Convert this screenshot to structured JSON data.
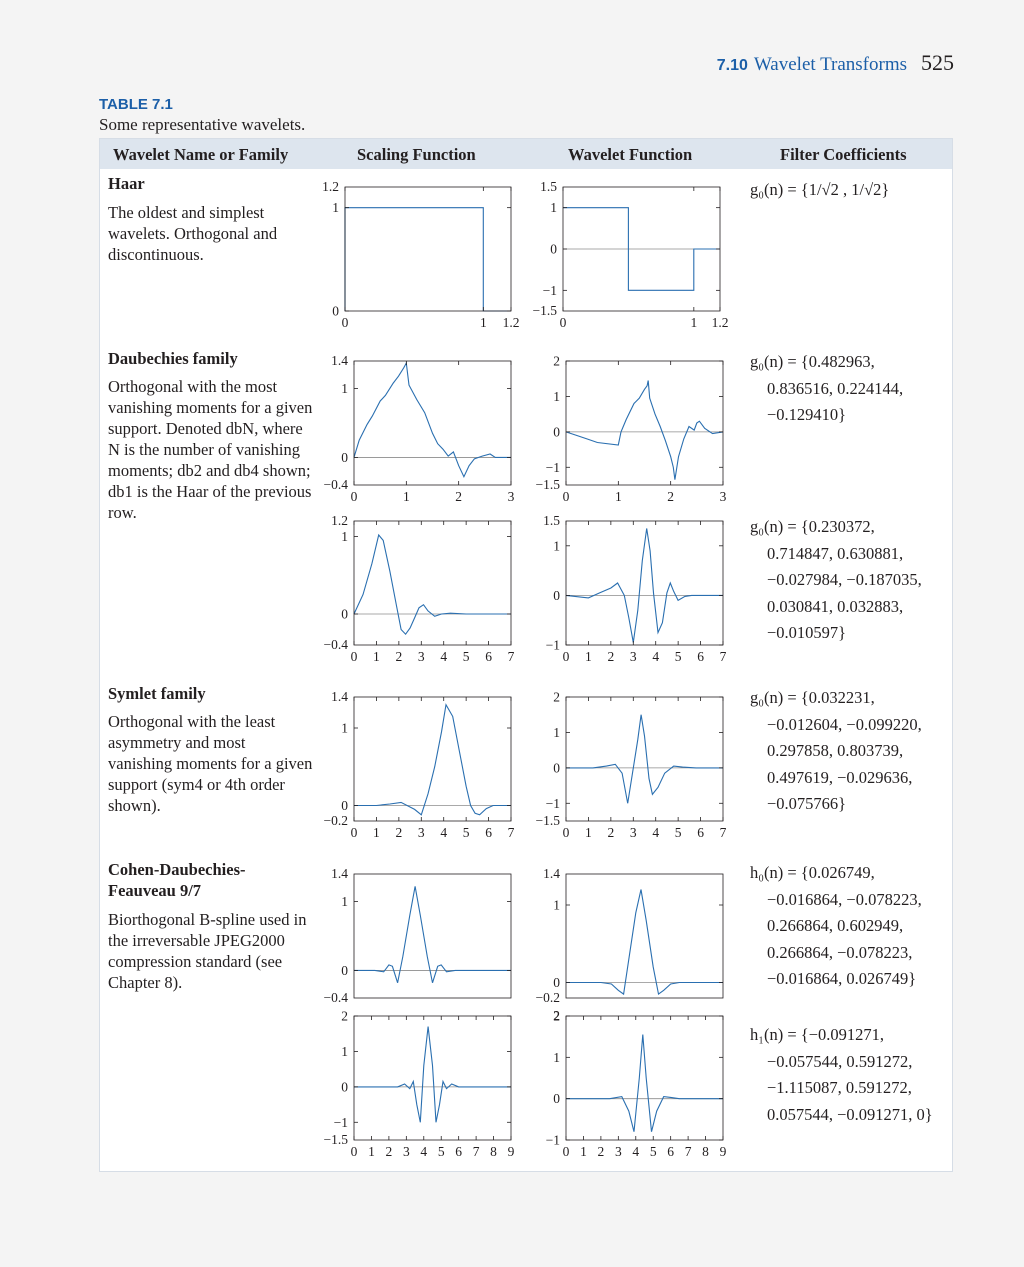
{
  "running_head": {
    "section_number": "7.10",
    "section_title": "Wavelet Transforms",
    "page_number": "525"
  },
  "table": {
    "label": "TABLE 7.1",
    "caption": "Some representative wavelets.",
    "headers": [
      "Wavelet Name or Family",
      "Scaling Function",
      "Wavelet Function",
      "Filter Coefficients"
    ]
  },
  "families": [
    {
      "name": "Haar",
      "description": "The oldest and simplest wavelets. Orthogonal and discontinuous.",
      "coefficients": [
        "g₀(n) = {1/√2 , 1/√2}"
      ]
    },
    {
      "name": "Daubechies family",
      "description": "Orthogonal with the most vanishing moments for a given support. Denoted dbN, where N is the number of vanishing moments; db2 and db4 shown; db1 is the Haar of the previous row.",
      "coefficients_db2": [
        "g₀(n) = {0.482963,",
        "0.836516, 0.224144,",
        "−0.129410}"
      ],
      "coefficients_db4": [
        "g₀(n) = {0.230372,",
        "0.714847, 0.630881,",
        "−0.027984,  −0.187035,",
        "0.030841, 0.032883,",
        "−0.010597}"
      ]
    },
    {
      "name": "Symlet family",
      "description": "Orthogonal with the least asymmetry and most vanishing moments for a given support (sym4 or 4th order shown).",
      "coefficients": [
        "g₀(n) = {0.032231,",
        "−0.012604,  −0.099220,",
        "0.297858, 0.803739,",
        "0.497619,  −0.029636,",
        "−0.075766}"
      ]
    },
    {
      "name_line1": "Cohen-Daubechies-",
      "name_line2": "Feauveau 9/7",
      "description": "Biorthogonal B-spline used in the irreversable JPEG2000 compression standard (see Chapter 8).",
      "coefficients_h0": [
        "h₀(n) = {0.026749,",
        "−0.016864,  −0.078223,",
        "0.266864, 0.602949,",
        "0.266864,  −0.078223,",
        "−0.016864, 0.026749}"
      ],
      "coefficients_h1": [
        "h₁(n) = {−0.091271,",
        "−0.057544, 0.591272,",
        "−1.115087, 0.591272,",
        "0.057544,  −0.091271, 0}"
      ]
    }
  ],
  "plot_colors": {
    "curve": "#2a6fb0",
    "zero_line": "#8c8c8c",
    "frame": "#231f20"
  },
  "plots": [
    {
      "id": "haar-scaling",
      "xlim": [
        0,
        1.2
      ],
      "ylim": [
        0,
        1.2
      ],
      "yticks": [
        0,
        1
      ],
      "ytick_labels": [
        "0",
        "1"
      ],
      "ylim_label_top": "1.2",
      "xticks": [
        0,
        1,
        1.2
      ],
      "xtick_labels": [
        "0",
        "1",
        "1.2"
      ],
      "points": [
        [
          0,
          0
        ],
        [
          0,
          1
        ],
        [
          1,
          1
        ],
        [
          1,
          0
        ],
        [
          1.2,
          0
        ]
      ]
    },
    {
      "id": "haar-wavelet",
      "xlim": [
        0,
        1.2
      ],
      "ylim": [
        -1.5,
        1.5
      ],
      "yticks": [
        -1,
        0,
        1
      ],
      "ytick_labels": [
        "−1",
        "0",
        "1"
      ],
      "ylim_label_top": "1.5",
      "ylim_label_bottom": "−1.5",
      "xticks": [
        0,
        1,
        1.2
      ],
      "xtick_labels": [
        "0",
        "1",
        "1.2"
      ],
      "points": [
        [
          0,
          1
        ],
        [
          0.5,
          1
        ],
        [
          0.5,
          -1
        ],
        [
          1,
          -1
        ],
        [
          1,
          0
        ],
        [
          1.2,
          0
        ]
      ]
    },
    {
      "id": "db2-scaling",
      "xlim": [
        0,
        3
      ],
      "ylim": [
        -0.4,
        1.4
      ],
      "yticks": [
        0,
        1
      ],
      "ytick_labels": [
        "0",
        "1"
      ],
      "ylim_label_top": "1.4",
      "ylim_label_bottom": "−0.4",
      "xticks": [
        0,
        1,
        2,
        3
      ],
      "xtick_labels": [
        "0",
        "1",
        "2",
        "3"
      ],
      "points": [
        [
          0,
          0
        ],
        [
          0.1,
          0.25
        ],
        [
          0.25,
          0.48
        ],
        [
          0.35,
          0.6
        ],
        [
          0.5,
          0.82
        ],
        [
          0.6,
          0.9
        ],
        [
          0.75,
          1.08
        ],
        [
          0.85,
          1.18
        ],
        [
          0.95,
          1.3
        ],
        [
          1.0,
          1.37
        ],
        [
          1.05,
          1.05
        ],
        [
          1.2,
          0.84
        ],
        [
          1.35,
          0.65
        ],
        [
          1.5,
          0.35
        ],
        [
          1.6,
          0.2
        ],
        [
          1.7,
          0.12
        ],
        [
          1.8,
          0.02
        ],
        [
          1.9,
          0.08
        ],
        [
          2.0,
          -0.12
        ],
        [
          2.1,
          -0.28
        ],
        [
          2.2,
          -0.12
        ],
        [
          2.3,
          -0.02
        ],
        [
          2.45,
          0.02
        ],
        [
          2.6,
          0.05
        ],
        [
          2.7,
          0
        ],
        [
          2.85,
          0
        ],
        [
          3,
          0
        ]
      ]
    },
    {
      "id": "db2-wavelet",
      "xlim": [
        0,
        3
      ],
      "ylim": [
        -1.5,
        2
      ],
      "yticks": [
        -1,
        0,
        1,
        2
      ],
      "ytick_labels": [
        "−1",
        "0",
        "1",
        "2"
      ],
      "ylim_label_bottom": "−1.5",
      "xticks": [
        0,
        1,
        2,
        3
      ],
      "xtick_labels": [
        "0",
        "1",
        "2",
        "3"
      ],
      "points": [
        [
          0,
          0
        ],
        [
          0.2,
          -0.1
        ],
        [
          0.4,
          -0.2
        ],
        [
          0.6,
          -0.3
        ],
        [
          1.0,
          -0.37
        ],
        [
          1.05,
          0
        ],
        [
          1.15,
          0.35
        ],
        [
          1.3,
          0.8
        ],
        [
          1.4,
          0.95
        ],
        [
          1.5,
          1.2
        ],
        [
          1.55,
          1.3
        ],
        [
          1.57,
          1.45
        ],
        [
          1.6,
          0.95
        ],
        [
          1.7,
          0.5
        ],
        [
          1.8,
          0.15
        ],
        [
          1.9,
          -0.25
        ],
        [
          2.0,
          -0.7
        ],
        [
          2.05,
          -1.0
        ],
        [
          2.08,
          -1.35
        ],
        [
          2.15,
          -0.7
        ],
        [
          2.25,
          -0.2
        ],
        [
          2.35,
          0.15
        ],
        [
          2.45,
          0.05
        ],
        [
          2.5,
          0.25
        ],
        [
          2.55,
          0.3
        ],
        [
          2.65,
          0.1
        ],
        [
          2.8,
          -0.05
        ],
        [
          3,
          0
        ]
      ]
    },
    {
      "id": "db4-scaling",
      "xlim": [
        0,
        7
      ],
      "ylim": [
        -0.4,
        1.2
      ],
      "yticks": [
        0,
        1
      ],
      "ytick_labels": [
        "0",
        "1"
      ],
      "ylim_label_top": "1.2",
      "ylim_label_bottom": "−0.4",
      "xticks": [
        0,
        1,
        2,
        3,
        4,
        5,
        6,
        7
      ],
      "xtick_labels": [
        "0",
        "1",
        "2",
        "3",
        "4",
        "5",
        "6",
        "7"
      ],
      "points": [
        [
          0,
          0
        ],
        [
          0.4,
          0.25
        ],
        [
          0.8,
          0.65
        ],
        [
          1.1,
          1.02
        ],
        [
          1.3,
          0.95
        ],
        [
          1.6,
          0.55
        ],
        [
          1.9,
          0.1
        ],
        [
          2.1,
          -0.2
        ],
        [
          2.3,
          -0.26
        ],
        [
          2.5,
          -0.18
        ],
        [
          2.7,
          -0.05
        ],
        [
          2.9,
          0.08
        ],
        [
          3.1,
          0.12
        ],
        [
          3.3,
          0.04
        ],
        [
          3.6,
          -0.03
        ],
        [
          3.9,
          0
        ],
        [
          4.3,
          0.01
        ],
        [
          5,
          0
        ],
        [
          7,
          0
        ]
      ]
    },
    {
      "id": "db4-wavelet",
      "xlim": [
        0,
        7
      ],
      "ylim": [
        -1,
        1.5
      ],
      "yticks": [
        -1,
        0,
        1
      ],
      "ytick_labels": [
        "−1",
        "0",
        "1"
      ],
      "ylim_label_top": "1.5",
      "xticks": [
        0,
        1,
        2,
        3,
        4,
        5,
        6,
        7
      ],
      "xtick_labels": [
        "0",
        "1",
        "2",
        "3",
        "4",
        "5",
        "6",
        "7"
      ],
      "points": [
        [
          0,
          0
        ],
        [
          1,
          -0.05
        ],
        [
          1.5,
          0.05
        ],
        [
          2,
          0.15
        ],
        [
          2.3,
          0.25
        ],
        [
          2.6,
          0
        ],
        [
          2.8,
          -0.45
        ],
        [
          3.0,
          -0.95
        ],
        [
          3.2,
          -0.3
        ],
        [
          3.4,
          0.7
        ],
        [
          3.6,
          1.35
        ],
        [
          3.75,
          0.9
        ],
        [
          3.9,
          0.05
        ],
        [
          4.1,
          -0.75
        ],
        [
          4.3,
          -0.55
        ],
        [
          4.5,
          0.05
        ],
        [
          4.65,
          0.25
        ],
        [
          4.8,
          0.08
        ],
        [
          5.0,
          -0.1
        ],
        [
          5.3,
          -0.02
        ],
        [
          5.6,
          0
        ],
        [
          7,
          0
        ]
      ]
    },
    {
      "id": "sym4-scaling",
      "xlim": [
        0,
        7
      ],
      "ylim": [
        -0.2,
        1.4
      ],
      "yticks": [
        0,
        1
      ],
      "ytick_labels": [
        "0",
        "1"
      ],
      "ylim_label_top": "1.4",
      "ylim_label_bottom": "−0.2",
      "xticks": [
        0,
        1,
        2,
        3,
        4,
        5,
        6,
        7
      ],
      "xtick_labels": [
        "0",
        "1",
        "2",
        "3",
        "4",
        "5",
        "6",
        "7"
      ],
      "points": [
        [
          0,
          0
        ],
        [
          1,
          0
        ],
        [
          1.6,
          0.02
        ],
        [
          2.1,
          0.04
        ],
        [
          2.7,
          -0.05
        ],
        [
          3.0,
          -0.12
        ],
        [
          3.3,
          0.15
        ],
        [
          3.6,
          0.5
        ],
        [
          3.9,
          0.95
        ],
        [
          4.1,
          1.3
        ],
        [
          4.4,
          1.15
        ],
        [
          4.7,
          0.7
        ],
        [
          5.0,
          0.25
        ],
        [
          5.2,
          0
        ],
        [
          5.4,
          -0.1
        ],
        [
          5.6,
          -0.12
        ],
        [
          5.9,
          -0.04
        ],
        [
          6.2,
          0
        ],
        [
          7,
          0
        ]
      ]
    },
    {
      "id": "sym4-wavelet",
      "xlim": [
        0,
        7
      ],
      "ylim": [
        -1.5,
        2
      ],
      "yticks": [
        -1,
        0,
        1,
        2
      ],
      "ytick_labels": [
        "−1",
        "0",
        "1",
        "2"
      ],
      "ylim_label_bottom": "−1.5",
      "xticks": [
        0,
        1,
        2,
        3,
        4,
        5,
        6,
        7
      ],
      "xtick_labels": [
        "0",
        "1",
        "2",
        "3",
        "4",
        "5",
        "6",
        "7"
      ],
      "points": [
        [
          0,
          0
        ],
        [
          1.2,
          0
        ],
        [
          1.8,
          0.05
        ],
        [
          2.2,
          0.1
        ],
        [
          2.5,
          -0.15
        ],
        [
          2.75,
          -1.0
        ],
        [
          2.95,
          -0.2
        ],
        [
          3.2,
          0.8
        ],
        [
          3.35,
          1.5
        ],
        [
          3.5,
          0.9
        ],
        [
          3.7,
          -0.3
        ],
        [
          3.85,
          -0.75
        ],
        [
          4.1,
          -0.55
        ],
        [
          4.4,
          -0.15
        ],
        [
          4.8,
          0.05
        ],
        [
          5.2,
          0.02
        ],
        [
          5.8,
          0
        ],
        [
          7,
          0
        ]
      ]
    },
    {
      "id": "cdf97-scaling",
      "xlim": [
        0,
        9
      ],
      "ylim": [
        -0.4,
        1.4
      ],
      "yticks": [
        0,
        1
      ],
      "ytick_labels": [
        "0",
        "1"
      ],
      "ylim_label_top": "1.4",
      "ylim_label_bottom": "−0.4",
      "xticks": [],
      "xtick_labels": [],
      "points": [
        [
          0,
          0
        ],
        [
          1.2,
          0
        ],
        [
          1.7,
          -0.02
        ],
        [
          2.0,
          0.08
        ],
        [
          2.2,
          0.06
        ],
        [
          2.5,
          -0.18
        ],
        [
          2.8,
          0.2
        ],
        [
          3.2,
          0.8
        ],
        [
          3.5,
          1.22
        ],
        [
          3.8,
          0.8
        ],
        [
          4.2,
          0.2
        ],
        [
          4.5,
          -0.18
        ],
        [
          4.8,
          0.06
        ],
        [
          5.0,
          0.08
        ],
        [
          5.3,
          -0.02
        ],
        [
          5.8,
          0
        ],
        [
          9,
          0
        ]
      ]
    },
    {
      "id": "cdf97-wavelet",
      "xlim": [
        0,
        9
      ],
      "ylim": [
        -0.2,
        1.4
      ],
      "yticks": [
        0,
        1
      ],
      "ytick_labels": [
        "0",
        "1"
      ],
      "ylim_label_top": "1.4",
      "ylim_label_bottom": "−0.2",
      "xticks": [],
      "xtick_labels": [],
      "points": [
        [
          0,
          0
        ],
        [
          2,
          0
        ],
        [
          2.6,
          -0.02
        ],
        [
          3.0,
          -0.1
        ],
        [
          3.3,
          -0.15
        ],
        [
          3.6,
          0.3
        ],
        [
          4.0,
          0.9
        ],
        [
          4.3,
          1.2
        ],
        [
          4.6,
          0.8
        ],
        [
          5.0,
          0.2
        ],
        [
          5.3,
          -0.15
        ],
        [
          5.6,
          -0.1
        ],
        [
          6.0,
          -0.02
        ],
        [
          6.5,
          0
        ],
        [
          9,
          0
        ]
      ]
    },
    {
      "id": "cdf97-scaling-synthesis",
      "xlim": [
        0,
        9
      ],
      "ylim": [
        -1.5,
        2
      ],
      "yticks": [
        -1,
        0,
        1,
        2
      ],
      "ytick_labels": [
        "−1",
        "0",
        "1",
        "2"
      ],
      "ylim_label_bottom": "−1.5",
      "xticks": [
        0,
        1,
        2,
        3,
        4,
        5,
        6,
        7,
        8,
        9
      ],
      "xtick_labels": [
        "0",
        "1",
        "2",
        "3",
        "4",
        "5",
        "6",
        "7",
        "8",
        "9"
      ],
      "points": [
        [
          0,
          0
        ],
        [
          2.5,
          0
        ],
        [
          2.9,
          0.08
        ],
        [
          3.2,
          -0.05
        ],
        [
          3.4,
          0.15
        ],
        [
          3.6,
          -0.5
        ],
        [
          3.8,
          -1.0
        ],
        [
          4.0,
          0.6
        ],
        [
          4.25,
          1.7
        ],
        [
          4.5,
          0.6
        ],
        [
          4.7,
          -1.0
        ],
        [
          4.9,
          -0.5
        ],
        [
          5.1,
          0.15
        ],
        [
          5.3,
          -0.05
        ],
        [
          5.6,
          0.08
        ],
        [
          6.0,
          0
        ],
        [
          9,
          0
        ]
      ]
    },
    {
      "id": "cdf97-wavelet-synthesis",
      "xlim": [
        0,
        9
      ],
      "ylim": [
        -1,
        2
      ],
      "yticks": [
        -1,
        0,
        1,
        2
      ],
      "ytick_labels": [
        "−1",
        "0",
        "1",
        "2"
      ],
      "ylim_label_top": "2",
      "xticks": [
        0,
        1,
        2,
        3,
        4,
        5,
        6,
        7,
        8,
        9
      ],
      "xtick_labels": [
        "0",
        "1",
        "2",
        "3",
        "4",
        "5",
        "6",
        "7",
        "8",
        "9"
      ],
      "points": [
        [
          0,
          0
        ],
        [
          2.5,
          0
        ],
        [
          3.2,
          0.05
        ],
        [
          3.6,
          -0.3
        ],
        [
          3.9,
          -0.8
        ],
        [
          4.2,
          0.5
        ],
        [
          4.4,
          1.55
        ],
        [
          4.6,
          0.5
        ],
        [
          4.9,
          -0.8
        ],
        [
          5.2,
          -0.3
        ],
        [
          5.6,
          0.05
        ],
        [
          6.0,
          0.03
        ],
        [
          6.5,
          0
        ],
        [
          9,
          0
        ]
      ]
    }
  ]
}
